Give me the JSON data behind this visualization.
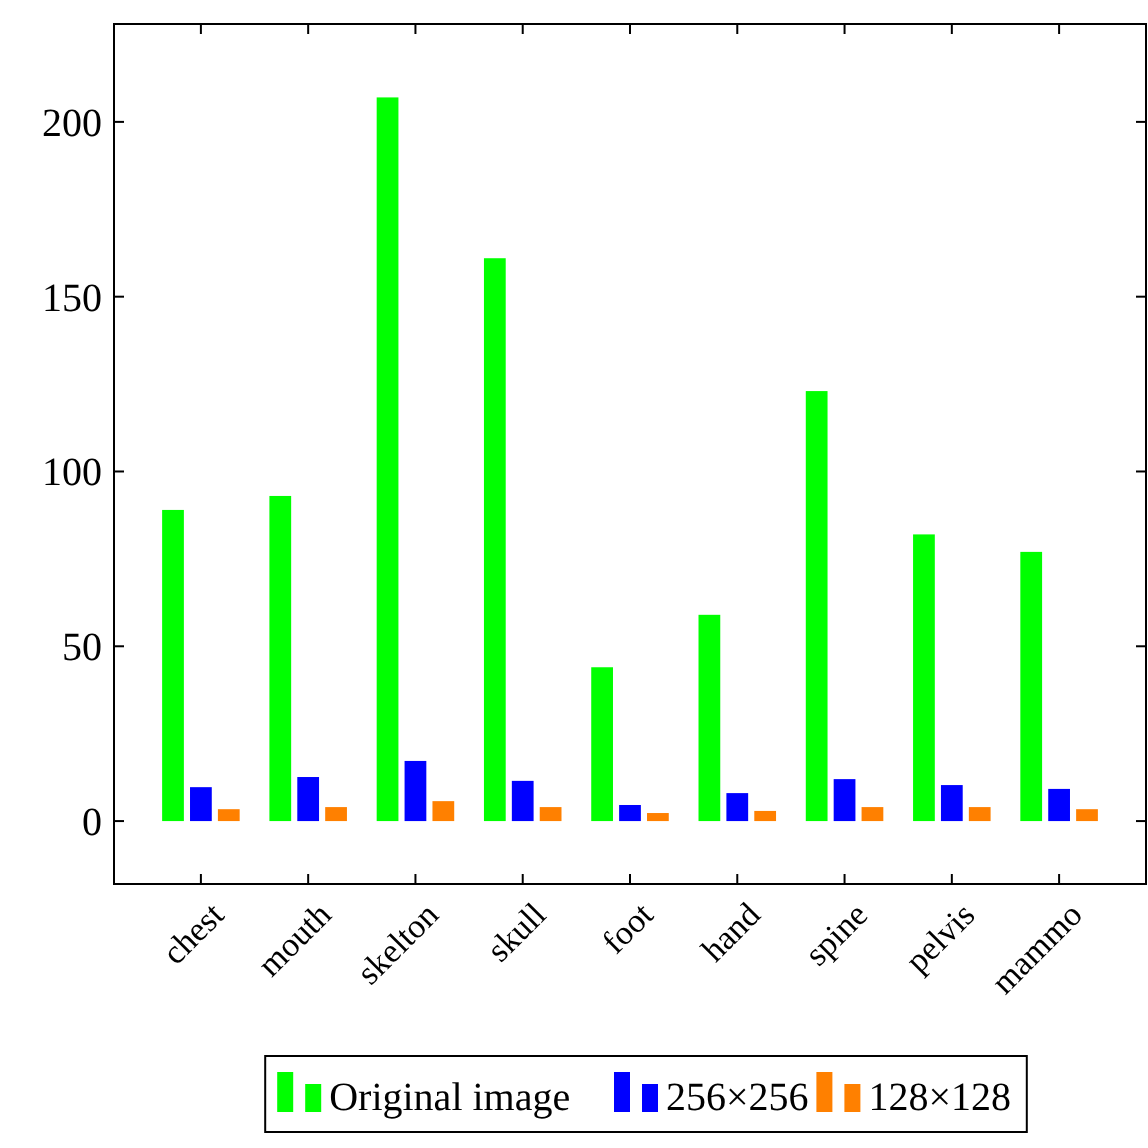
{
  "chart_data": {
    "type": "bar",
    "categories": [
      "chest",
      "mouth",
      "skelton",
      "skull",
      "foot",
      "hand",
      "spine",
      "pelvis",
      "mammo"
    ],
    "series": [
      {
        "name": "Original image",
        "color": "#00ff00",
        "values": [
          89,
          93,
          207,
          161,
          44,
          59,
          123,
          82,
          77
        ]
      },
      {
        "name": "256×256",
        "color": "#0000ff",
        "values": [
          9.7,
          12.6,
          17.2,
          11.5,
          4.6,
          8,
          12,
          10.3,
          9.2
        ]
      },
      {
        "name": "128×128",
        "color": "#ff8000",
        "values": [
          3.4,
          4,
          5.7,
          4,
          2.3,
          2.9,
          4,
          4,
          3.4
        ]
      }
    ],
    "ylim": [
      -18,
      228
    ],
    "yticks": [
      0,
      50,
      100,
      150,
      200
    ],
    "grid": false,
    "legend": "bottom"
  }
}
